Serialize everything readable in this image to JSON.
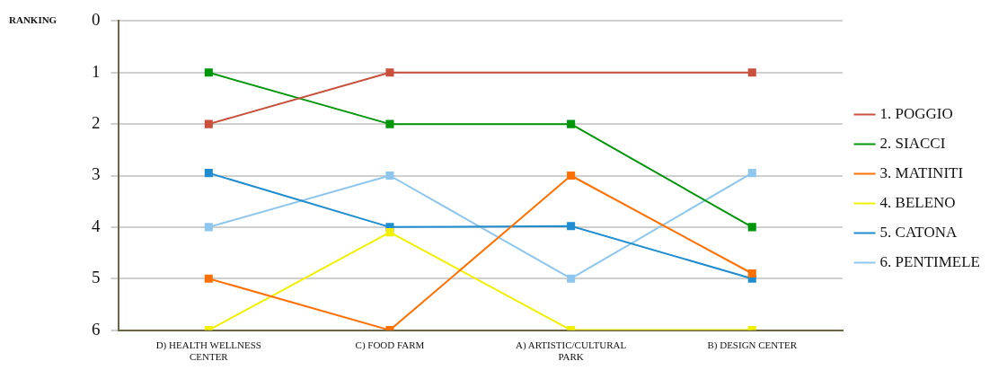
{
  "chart_data": {
    "type": "line",
    "ylabel": "RANKING",
    "categories": [
      "D) HEALTH WELLNESS CENTER",
      "C) FOOD FARM",
      "A) ARTISTIC/CULTURAL PARK",
      "B) DESIGN CENTER"
    ],
    "series": [
      {
        "name": "1. POGGIO",
        "color": "#c8503c",
        "values": [
          2,
          1,
          null,
          1
        ]
      },
      {
        "name": "2. SIACCI",
        "color": "#00960a",
        "values": [
          1,
          2,
          2,
          4
        ]
      },
      {
        "name": "3. MATINITI",
        "color": "#ff7000",
        "values": [
          5,
          6,
          3,
          4.9
        ]
      },
      {
        "name": "4. BELENO",
        "color": "#f0f000",
        "values": [
          6,
          4.1,
          6,
          6
        ]
      },
      {
        "name": "5. CATONA",
        "color": "#1f8dd0",
        "values": [
          2.95,
          4,
          3.98,
          5
        ]
      },
      {
        "name": "6. PENTIMELE",
        "color": "#8ec6ee",
        "values": [
          4,
          3,
          5,
          2.95
        ]
      }
    ],
    "ylim": [
      6,
      0
    ],
    "yticks": [
      0,
      1,
      2,
      3,
      4,
      5,
      6
    ],
    "grid": "y",
    "legend": "right",
    "marker": "square",
    "line_style": "solid"
  }
}
